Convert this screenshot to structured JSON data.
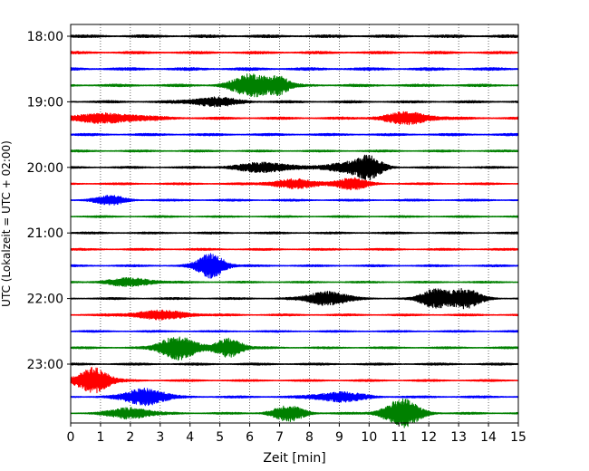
{
  "chart_data": {
    "type": "line",
    "title": "",
    "xlabel": "Zeit  [min]",
    "ylabel": "UTC (Lokalzeit = UTC + 02:00)",
    "xlim": [
      0,
      15
    ],
    "x_ticks": [
      0,
      1,
      2,
      3,
      4,
      5,
      6,
      7,
      8,
      9,
      10,
      11,
      12,
      13,
      14,
      15
    ],
    "x_tick_labels": [
      "0",
      "1",
      "2",
      "3",
      "4",
      "5",
      "6",
      "7",
      "8",
      "9",
      "10",
      "11",
      "12",
      "13",
      "14",
      "15"
    ],
    "y_tick_labels": [
      "18:00",
      "19:00",
      "20:00",
      "21:00",
      "22:00",
      "23:00"
    ],
    "y_tick_trace_index": [
      0,
      4,
      8,
      12,
      16,
      20
    ],
    "trace_interval_minutes": 15,
    "grid": "vertical dotted at each minute",
    "colors": [
      "#000000",
      "#ff0000",
      "#0000ff",
      "#008000"
    ],
    "traces": [
      {
        "start": "18:00",
        "color": "#000000",
        "noise": 0.85,
        "events": []
      },
      {
        "start": "18:15",
        "color": "#ff0000",
        "noise": 0.75,
        "events": []
      },
      {
        "start": "18:30",
        "color": "#0000ff",
        "noise": 0.85,
        "events": []
      },
      {
        "start": "18:45",
        "color": "#008000",
        "noise": 0.75,
        "events": [
          {
            "t": 6.1,
            "amp": 2.4,
            "width": 0.5
          },
          {
            "t": 7.0,
            "amp": 1.6,
            "width": 0.25
          }
        ]
      },
      {
        "start": "19:00",
        "color": "#000000",
        "noise": 0.7,
        "events": [
          {
            "t": 4.8,
            "amp": 0.9,
            "width": 0.6
          }
        ]
      },
      {
        "start": "19:15",
        "color": "#ff0000",
        "noise": 0.7,
        "events": [
          {
            "t": 1.2,
            "amp": 0.9,
            "width": 1.0
          },
          {
            "t": 11.3,
            "amp": 1.2,
            "width": 0.6
          }
        ]
      },
      {
        "start": "19:30",
        "color": "#0000ff",
        "noise": 0.7,
        "events": []
      },
      {
        "start": "19:45",
        "color": "#008000",
        "noise": 0.6,
        "events": []
      },
      {
        "start": "20:00",
        "color": "#000000",
        "noise": 0.6,
        "events": [
          {
            "t": 6.5,
            "amp": 1.0,
            "width": 0.7
          },
          {
            "t": 10.0,
            "amp": 2.2,
            "width": 0.35
          },
          {
            "t": 9.2,
            "amp": 1.0,
            "width": 0.5
          }
        ]
      },
      {
        "start": "20:15",
        "color": "#ff0000",
        "noise": 0.6,
        "events": [
          {
            "t": 9.4,
            "amp": 1.2,
            "width": 0.4
          },
          {
            "t": 7.5,
            "amp": 0.9,
            "width": 0.6
          }
        ]
      },
      {
        "start": "20:30",
        "color": "#0000ff",
        "noise": 0.6,
        "events": [
          {
            "t": 1.3,
            "amp": 0.9,
            "width": 0.4
          }
        ]
      },
      {
        "start": "20:45",
        "color": "#008000",
        "noise": 0.55,
        "events": []
      },
      {
        "start": "21:00",
        "color": "#000000",
        "noise": 0.6,
        "events": []
      },
      {
        "start": "21:15",
        "color": "#ff0000",
        "noise": 0.6,
        "events": []
      },
      {
        "start": "21:30",
        "color": "#0000ff",
        "noise": 0.6,
        "events": [
          {
            "t": 4.7,
            "amp": 2.6,
            "width": 0.35
          }
        ]
      },
      {
        "start": "21:45",
        "color": "#008000",
        "noise": 0.55,
        "events": [
          {
            "t": 2.0,
            "amp": 0.8,
            "width": 0.6
          }
        ]
      },
      {
        "start": "22:00",
        "color": "#000000",
        "noise": 0.6,
        "events": [
          {
            "t": 8.6,
            "amp": 1.5,
            "width": 0.5
          },
          {
            "t": 12.2,
            "amp": 2.0,
            "width": 0.35
          },
          {
            "t": 13.2,
            "amp": 2.0,
            "width": 0.4
          }
        ]
      },
      {
        "start": "22:15",
        "color": "#ff0000",
        "noise": 0.6,
        "events": [
          {
            "t": 3.0,
            "amp": 0.9,
            "width": 0.7
          }
        ]
      },
      {
        "start": "22:30",
        "color": "#0000ff",
        "noise": 0.55,
        "events": []
      },
      {
        "start": "22:45",
        "color": "#008000",
        "noise": 0.6,
        "events": [
          {
            "t": 3.6,
            "amp": 2.6,
            "width": 0.45
          },
          {
            "t": 5.3,
            "amp": 2.0,
            "width": 0.35
          }
        ]
      },
      {
        "start": "23:00",
        "color": "#000000",
        "noise": 0.65,
        "events": []
      },
      {
        "start": "23:15",
        "color": "#ff0000",
        "noise": 0.6,
        "events": [
          {
            "t": 0.75,
            "amp": 2.8,
            "width": 0.4
          }
        ]
      },
      {
        "start": "23:30",
        "color": "#0000ff",
        "noise": 0.65,
        "events": [
          {
            "t": 2.5,
            "amp": 1.8,
            "width": 0.5
          },
          {
            "t": 9.0,
            "amp": 1.0,
            "width": 0.6
          }
        ]
      },
      {
        "start": "23:45",
        "color": "#008000",
        "noise": 0.6,
        "events": [
          {
            "t": 2.0,
            "amp": 1.2,
            "width": 0.5
          },
          {
            "t": 7.3,
            "amp": 1.6,
            "width": 0.4
          },
          {
            "t": 11.1,
            "amp": 3.0,
            "width": 0.45
          }
        ]
      }
    ]
  }
}
